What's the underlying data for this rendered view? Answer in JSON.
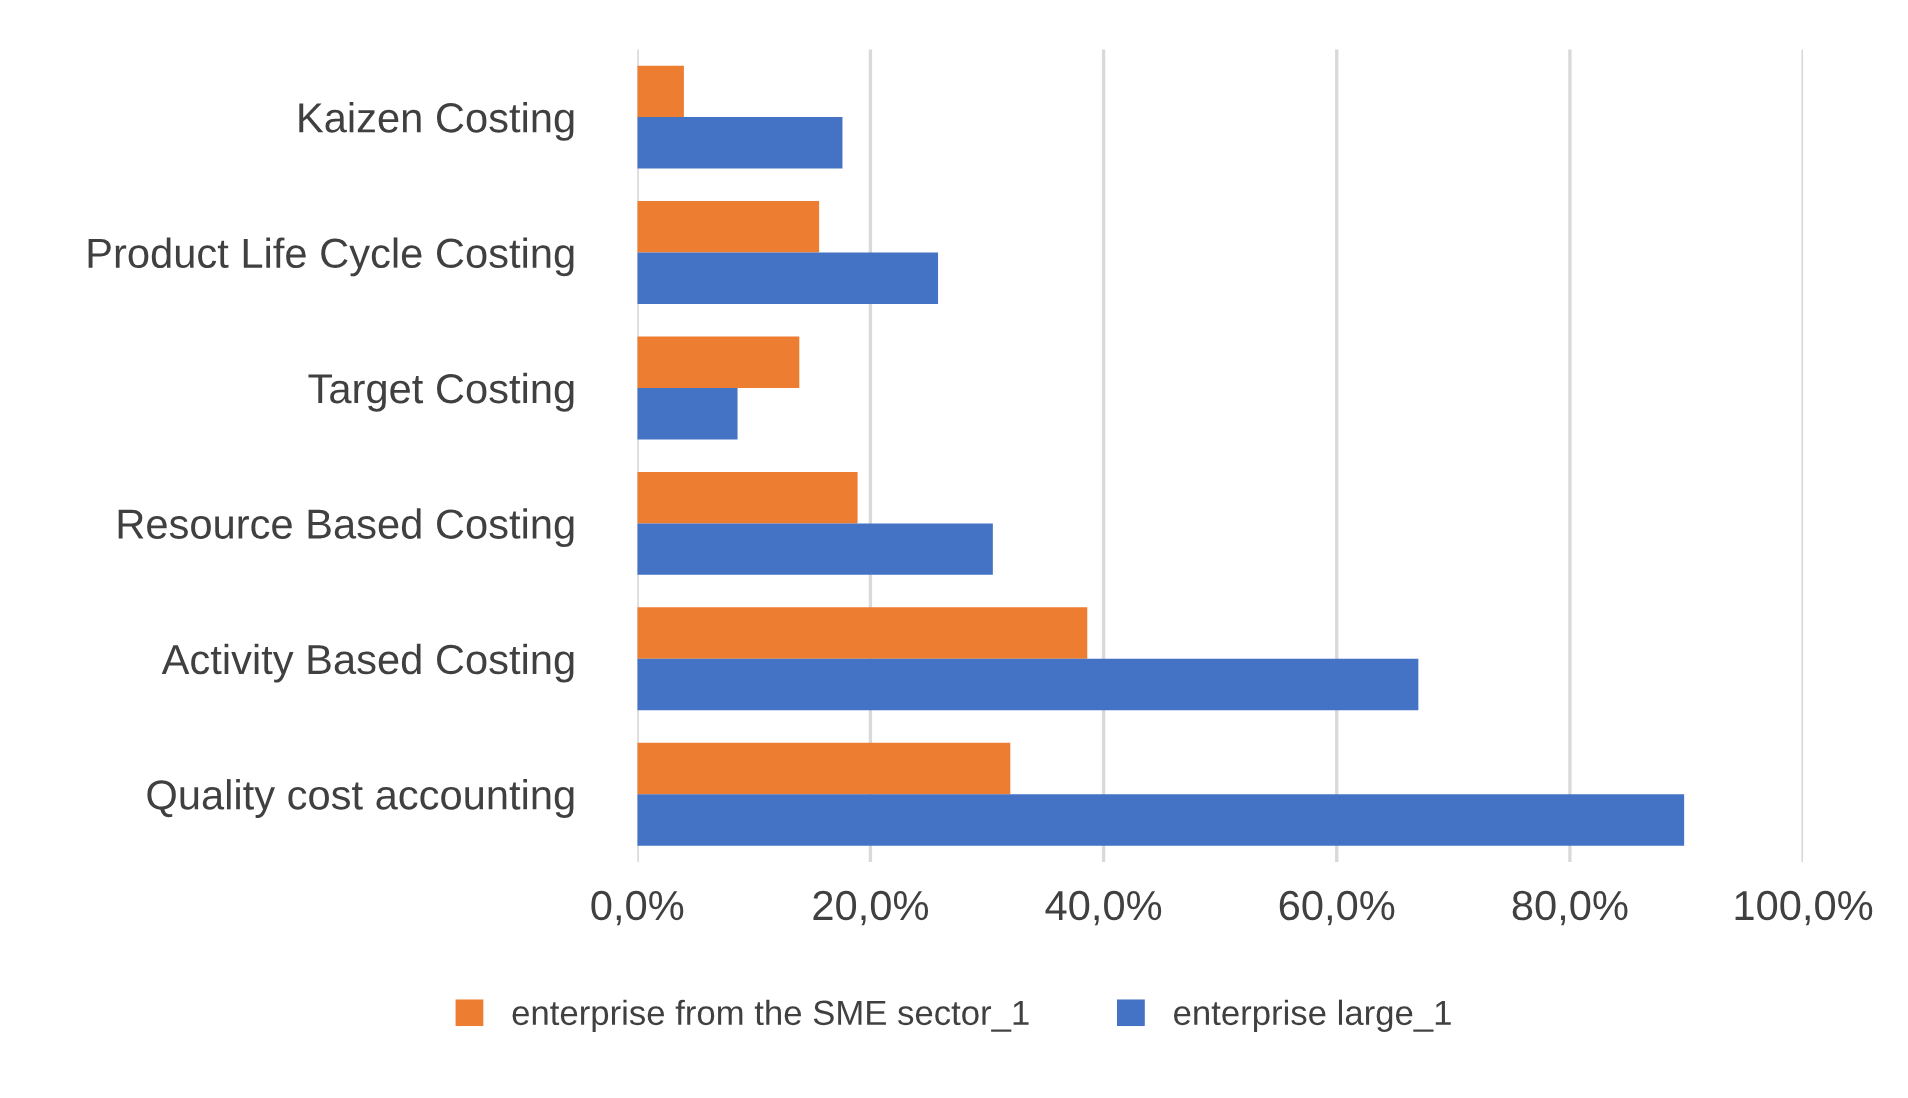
{
  "chart_data": {
    "type": "bar",
    "orientation": "horizontal",
    "categories": [
      "Kaizen Costing",
      "Product Life Cycle Costing",
      "Target Costing",
      "Resource Based Costing",
      "Activity Based Costing",
      "Quality cost accounting"
    ],
    "series": [
      {
        "name": "enterprise from the SME sector_1",
        "color": "#ed7d31",
        "values": [
          4.0,
          15.6,
          13.9,
          18.9,
          38.6,
          32.0
        ]
      },
      {
        "name": "enterprise large_1",
        "color": "#4472c4",
        "values": [
          17.6,
          25.8,
          8.6,
          30.5,
          67.0,
          89.8
        ]
      }
    ],
    "xlim": [
      0,
      100
    ],
    "xticks": [
      {
        "value": 0,
        "label": "0,0%"
      },
      {
        "value": 20,
        "label": "20,0%"
      },
      {
        "value": 40,
        "label": "40,0%"
      },
      {
        "value": 60,
        "label": "60,0%"
      },
      {
        "value": 80,
        "label": "80,0%"
      },
      {
        "value": 100,
        "label": "100,0%"
      }
    ],
    "grid": "x",
    "legend": "bottom"
  }
}
